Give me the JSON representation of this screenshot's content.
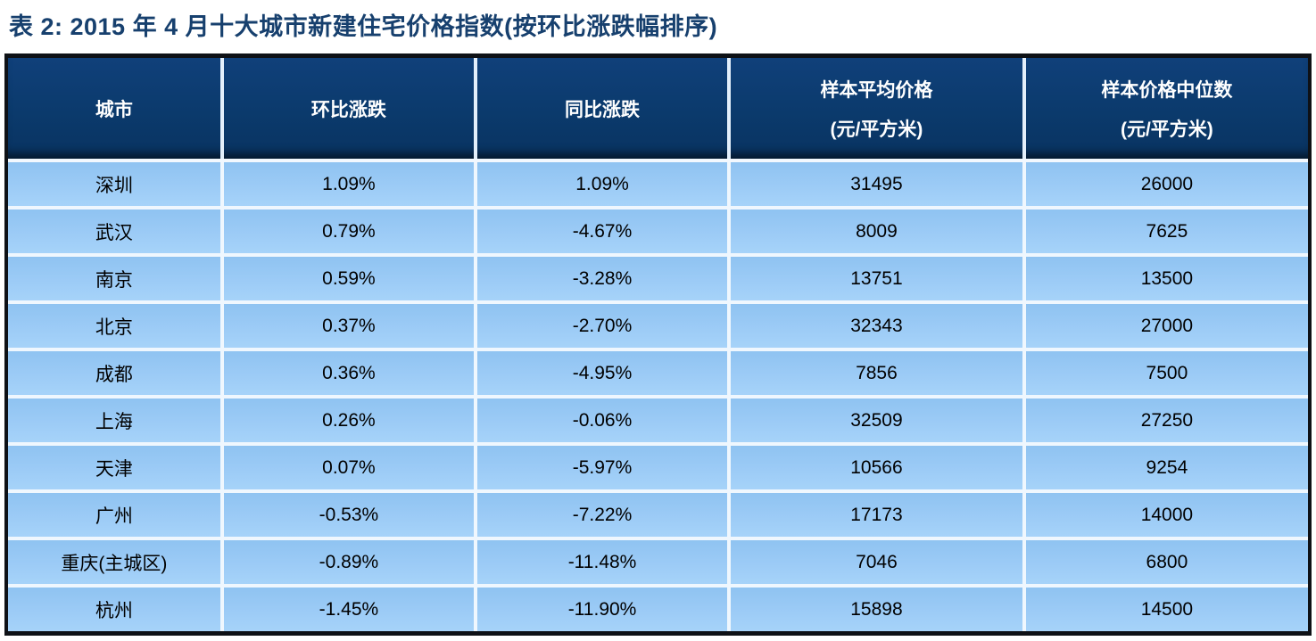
{
  "title": "表 2: 2015 年 4 月十大城市新建住宅价格指数(按环比涨跌幅排序)",
  "colors": {
    "title_text": "#17406E",
    "header_bg": "#0B3A6C",
    "header_text": "#FFFFFF",
    "row_bg": "#9ACAF6",
    "grid_line": "#EFF7FE",
    "outer_border": "#0E1116",
    "body_text": "#000000"
  },
  "table": {
    "columns": [
      {
        "label": "城市",
        "sub": ""
      },
      {
        "label": "环比涨跌",
        "sub": ""
      },
      {
        "label": "同比涨跌",
        "sub": ""
      },
      {
        "label": "样本平均价格",
        "sub": "(元/平方米)"
      },
      {
        "label": "样本价格中位数",
        "sub": "(元/平方米)"
      }
    ],
    "rows": [
      {
        "city": "深圳",
        "mom": "1.09%",
        "yoy": "1.09%",
        "avg": "31495",
        "median": "26000"
      },
      {
        "city": "武汉",
        "mom": "0.79%",
        "yoy": "-4.67%",
        "avg": "8009",
        "median": "7625"
      },
      {
        "city": "南京",
        "mom": "0.59%",
        "yoy": "-3.28%",
        "avg": "13751",
        "median": "13500"
      },
      {
        "city": "北京",
        "mom": "0.37%",
        "yoy": "-2.70%",
        "avg": "32343",
        "median": "27000"
      },
      {
        "city": "成都",
        "mom": "0.36%",
        "yoy": "-4.95%",
        "avg": "7856",
        "median": "7500"
      },
      {
        "city": "上海",
        "mom": "0.26%",
        "yoy": "-0.06%",
        "avg": "32509",
        "median": "27250"
      },
      {
        "city": "天津",
        "mom": "0.07%",
        "yoy": "-5.97%",
        "avg": "10566",
        "median": "9254"
      },
      {
        "city": "广州",
        "mom": "-0.53%",
        "yoy": "-7.22%",
        "avg": "17173",
        "median": "14000"
      },
      {
        "city": "重庆(主城区)",
        "mom": "-0.89%",
        "yoy": "-11.48%",
        "avg": "7046",
        "median": "6800"
      },
      {
        "city": "杭州",
        "mom": "-1.45%",
        "yoy": "-11.90%",
        "avg": "15898",
        "median": "14500"
      }
    ]
  },
  "chart_data": {
    "type": "table",
    "title": "表 2: 2015 年 4 月十大城市新建住宅价格指数(按环比涨跌幅排序)",
    "columns": [
      "城市",
      "环比涨跌",
      "同比涨跌",
      "样本平均价格(元/平方米)",
      "样本价格中位数(元/平方米)"
    ],
    "rows": [
      [
        "深圳",
        "1.09%",
        "1.09%",
        31495,
        26000
      ],
      [
        "武汉",
        "0.79%",
        "-4.67%",
        8009,
        7625
      ],
      [
        "南京",
        "0.59%",
        "-3.28%",
        13751,
        13500
      ],
      [
        "北京",
        "0.37%",
        "-2.70%",
        32343,
        27000
      ],
      [
        "成都",
        "0.36%",
        "-4.95%",
        7856,
        7500
      ],
      [
        "上海",
        "0.26%",
        "-0.06%",
        32509,
        27250
      ],
      [
        "天津",
        "0.07%",
        "-5.97%",
        10566,
        9254
      ],
      [
        "广州",
        "-0.53%",
        "-7.22%",
        17173,
        14000
      ],
      [
        "重庆(主城区)",
        "-0.89%",
        "-11.48%",
        7046,
        6800
      ],
      [
        "杭州",
        "-1.45%",
        "-11.90%",
        15898,
        14500
      ]
    ],
    "sort_order": "环比涨跌幅 descending"
  }
}
